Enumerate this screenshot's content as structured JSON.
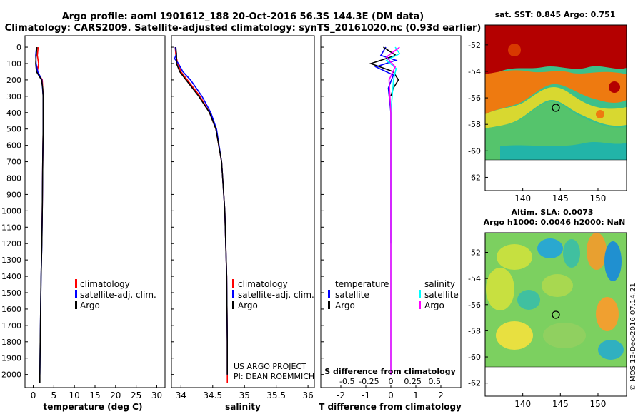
{
  "header": {
    "title_line1": "Argo profile: aoml 1901612_188 20-Oct-2016 56.3S 144.3E (DM data)",
    "title_line2": "Climatology: CARS2009. Satellite-adjusted climatology: synTS_20161020.nc (0.93d earlier)"
  },
  "colors": {
    "climatology": "#ff0000",
    "satellite_adj": "#0000ff",
    "argo": "#000000",
    "diff_t_sat": "#0000ff",
    "diff_t_argo": "#000000",
    "diff_s_sat": "#00ffff",
    "diff_s_argo": "#ff00ff"
  },
  "depth_ticks": [
    "0",
    "100",
    "200",
    "300",
    "400",
    "500",
    "600",
    "700",
    "800",
    "900",
    "1000",
    "1100",
    "1200",
    "1300",
    "1400",
    "1500",
    "1600",
    "1700",
    "1800",
    "1900",
    "2000"
  ],
  "panel_temp": {
    "xlabel": "temperature (deg C)",
    "xticks": [
      "0",
      "5",
      "10",
      "15",
      "20",
      "25",
      "30"
    ],
    "legend": [
      "climatology",
      "satellite-adj. clim.",
      "Argo"
    ]
  },
  "panel_sal": {
    "xlabel": "salinity",
    "xticks": [
      "34",
      "34.5",
      "35",
      "35.5",
      "36"
    ],
    "legend": [
      "climatology",
      "satellite-adj. clim.",
      "Argo"
    ],
    "credit1": "US ARGO PROJECT",
    "credit2": "PI: DEAN ROEMMICH"
  },
  "panel_diff": {
    "xlabel": "T difference from climatology",
    "xticks": [
      "-2",
      "-1",
      "0",
      "1",
      "2"
    ],
    "s_caption": "S difference from climatology",
    "s_ticks": [
      "-0.5",
      "-0.25",
      "0",
      "0.25",
      "0.5"
    ],
    "legend_t_title": "temperature",
    "legend_s_title": "salinity",
    "legend_t": [
      "satellite",
      "Argo"
    ],
    "legend_s": [
      "satellite",
      "Argo"
    ]
  },
  "map_sst": {
    "title": "sat. SST: 0.845 Argo: 0.751",
    "yticks": [
      "-52",
      "-54",
      "-56",
      "-58",
      "-60",
      "-62"
    ],
    "xticks": [
      "140",
      "145",
      "150"
    ]
  },
  "map_sla": {
    "title1": "Altim. SLA: 0.0073",
    "title2": "Argo h1000: 0.0046 h2000: NaN",
    "yticks": [
      "-52",
      "-54",
      "-56",
      "-58",
      "-60",
      "-62"
    ],
    "xticks": [
      "140",
      "145",
      "150"
    ]
  },
  "watermark": "©IMOS 13-Dec-2016 07:14:21",
  "chart_data": [
    {
      "type": "line",
      "title": "",
      "xlabel": "temperature (deg C)",
      "ylabel": "",
      "xlim": [
        -2,
        32
      ],
      "ylim": [
        2060,
        0
      ],
      "series": [
        {
          "name": "climatology",
          "points": [
            [
              1.2,
              0
            ],
            [
              1.0,
              50
            ],
            [
              1.3,
              100
            ],
            [
              1.0,
              150
            ],
            [
              2.2,
              200
            ],
            [
              2.4,
              300
            ],
            [
              2.4,
              500
            ],
            [
              2.3,
              700
            ],
            [
              2.2,
              1000
            ],
            [
              2.1,
              1150
            ]
          ]
        },
        {
          "name": "satellite-adj. clim.",
          "points": [
            [
              0.8,
              0
            ],
            [
              0.6,
              50
            ],
            [
              0.7,
              100
            ],
            [
              1.1,
              150
            ],
            [
              2.1,
              200
            ],
            [
              2.4,
              300
            ],
            [
              2.4,
              500
            ],
            [
              2.3,
              700
            ],
            [
              2.2,
              1000
            ],
            [
              2.1,
              1200
            ],
            [
              1.9,
              1400
            ],
            [
              1.8,
              1600
            ],
            [
              1.7,
              1800
            ],
            [
              1.6,
              2000
            ]
          ]
        },
        {
          "name": "Argo",
          "points": [
            [
              0.9,
              0
            ],
            [
              0.7,
              50
            ],
            [
              0.6,
              100
            ],
            [
              0.8,
              150
            ],
            [
              2.0,
              200
            ],
            [
              2.3,
              250
            ],
            [
              2.4,
              300
            ],
            [
              2.4,
              500
            ],
            [
              2.3,
              700
            ],
            [
              2.2,
              1000
            ],
            [
              2.1,
              1200
            ],
            [
              1.9,
              1400
            ],
            [
              1.8,
              1600
            ],
            [
              1.7,
              1800
            ],
            [
              1.6,
              2000
            ],
            [
              1.6,
              2050
            ]
          ]
        }
      ]
    },
    {
      "type": "line",
      "title": "",
      "xlabel": "salinity",
      "ylabel": "",
      "xlim": [
        33.85,
        36.1
      ],
      "ylim": [
        2060,
        0
      ],
      "series": [
        {
          "name": "climatology",
          "points": [
            [
              33.91,
              0
            ],
            [
              33.92,
              50
            ],
            [
              33.95,
              100
            ],
            [
              34.0,
              150
            ],
            [
              34.1,
              200
            ],
            [
              34.3,
              300
            ],
            [
              34.45,
              400
            ],
            [
              34.55,
              500
            ],
            [
              34.64,
              700
            ],
            [
              34.69,
              1000
            ],
            [
              34.72,
              1400
            ],
            [
              34.73,
              1800
            ],
            [
              34.73,
              2050
            ]
          ]
        },
        {
          "name": "satellite-adj. clim.",
          "points": [
            [
              33.91,
              0
            ],
            [
              33.93,
              40
            ],
            [
              33.9,
              70
            ],
            [
              33.96,
              100
            ],
            [
              34.03,
              150
            ],
            [
              34.15,
              200
            ],
            [
              34.33,
              300
            ],
            [
              34.47,
              400
            ],
            [
              34.56,
              500
            ],
            [
              34.64,
              700
            ],
            [
              34.69,
              1000
            ],
            [
              34.72,
              1400
            ],
            [
              34.73,
              1800
            ],
            [
              34.73,
              2000
            ]
          ]
        },
        {
          "name": "Argo",
          "points": [
            [
              33.92,
              0
            ],
            [
              33.93,
              50
            ],
            [
              33.93,
              100
            ],
            [
              33.98,
              150
            ],
            [
              34.08,
              200
            ],
            [
              34.28,
              300
            ],
            [
              34.45,
              400
            ],
            [
              34.55,
              500
            ],
            [
              34.64,
              700
            ],
            [
              34.69,
              1000
            ],
            [
              34.72,
              1400
            ],
            [
              34.73,
              1800
            ],
            [
              34.73,
              2000
            ]
          ]
        }
      ]
    },
    {
      "type": "line",
      "title": "",
      "xlabel": "T difference from climatology",
      "ylabel": "",
      "xlim": [
        -2.8,
        2.8
      ],
      "ylim": [
        2060,
        0
      ],
      "secondary_x": {
        "label": "S difference from climatology",
        "range": [
          -0.8,
          0.8
        ]
      },
      "series": [
        {
          "name": "temperature satellite",
          "points": [
            [
              -0.2,
              0
            ],
            [
              -0.4,
              50
            ],
            [
              0.2,
              80
            ],
            [
              -0.6,
              120
            ],
            [
              0.1,
              170
            ],
            [
              -0.1,
              250
            ],
            [
              0.0,
              400
            ],
            [
              0.0,
              700
            ],
            [
              0.0,
              1000
            ],
            [
              0.0,
              1200
            ]
          ]
        },
        {
          "name": "temperature Argo",
          "points": [
            [
              -0.3,
              0
            ],
            [
              0.2,
              50
            ],
            [
              -0.8,
              100
            ],
            [
              0.1,
              150
            ],
            [
              0.3,
              200
            ],
            [
              0.1,
              250
            ],
            [
              0.0,
              300
            ]
          ]
        },
        {
          "name": "salinity satellite",
          "points": [
            [
              0.05,
              0
            ],
            [
              0.1,
              40
            ],
            [
              -0.05,
              80
            ],
            [
              0.06,
              130
            ],
            [
              0.03,
              200
            ],
            [
              0.0,
              400
            ],
            [
              0.0,
              1000
            ],
            [
              0.0,
              2000
            ]
          ]
        },
        {
          "name": "salinity Argo",
          "points": [
            [
              0.1,
              0
            ],
            [
              -0.05,
              60
            ],
            [
              0.05,
              120
            ],
            [
              -0.02,
              200
            ],
            [
              0.0,
              400
            ],
            [
              0.0,
              700
            ],
            [
              0.0,
              1000
            ],
            [
              0.0,
              1500
            ],
            [
              0.0,
              2000
            ]
          ]
        }
      ]
    },
    {
      "type": "heatmap",
      "title": "sat. SST: 0.845 Argo: 0.751",
      "xlim": [
        135,
        153.8
      ],
      "ylim": [
        -63,
        -50.5
      ],
      "marker": {
        "lon": 144.3,
        "lat": -56.3
      }
    },
    {
      "type": "heatmap",
      "title": "Altim. SLA: 0.0073 / Argo h1000: 0.0046 h2000: NaN",
      "xlim": [
        135,
        153.8
      ],
      "ylim": [
        -63,
        -50.5
      ],
      "marker": {
        "lon": 144.3,
        "lat": -56.3
      }
    }
  ]
}
